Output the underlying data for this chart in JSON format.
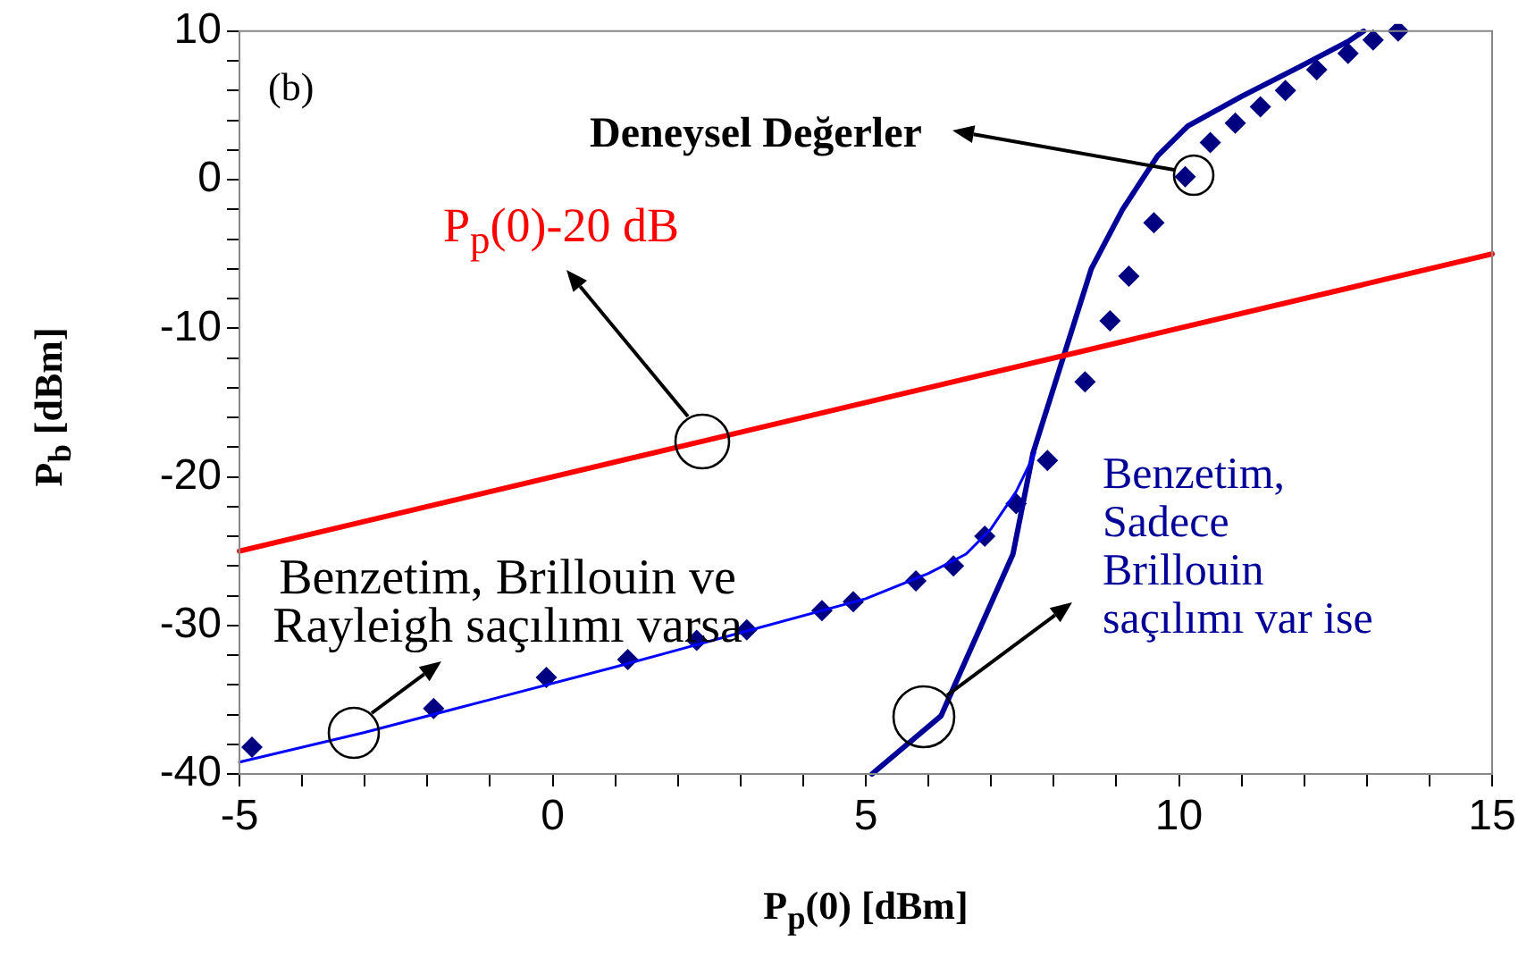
{
  "chart_data": {
    "type": "line",
    "xlabel": "P$_{p}$(0) [dBm]",
    "ylabel": "P$_{b}$ [dBm]",
    "annotations": [
      "(b)"
    ],
    "xlim": [
      -5,
      15
    ],
    "ylim": [
      -40,
      10
    ],
    "xticks": [
      -5,
      {
        "value": -4,
        "label": null
      },
      {
        "value": -3,
        "label": null
      },
      {
        "value": -2,
        "label": null
      },
      {
        "value": -1,
        "label": null
      },
      0,
      {
        "value": 1,
        "label": null
      },
      {
        "value": 2,
        "label": null
      },
      {
        "value": 3,
        "label": null
      },
      {
        "value": 4,
        "label": null
      },
      5,
      {
        "value": 6,
        "label": null
      },
      {
        "value": 7,
        "label": null
      },
      {
        "value": 8,
        "label": null
      },
      {
        "value": 9,
        "label": null
      },
      10,
      {
        "value": 11,
        "label": null
      },
      {
        "value": 12,
        "label": null
      },
      {
        "value": 13,
        "label": null
      },
      {
        "value": 14,
        "label": null
      },
      15
    ],
    "yticks": [
      -40,
      {
        "value": -38,
        "label": null
      },
      {
        "value": -36,
        "label": null
      },
      {
        "value": -34,
        "label": null
      },
      {
        "value": -32,
        "label": null
      },
      -30,
      {
        "value": -28,
        "label": null
      },
      {
        "value": -26,
        "label": null
      },
      {
        "value": -24,
        "label": null
      },
      {
        "value": -22,
        "label": null
      },
      -20,
      {
        "value": -18,
        "label": null
      },
      {
        "value": -16,
        "label": null
      },
      {
        "value": -14,
        "label": null
      },
      {
        "value": -12,
        "label": null
      },
      -10,
      {
        "value": -8,
        "label": null
      },
      {
        "value": -6,
        "label": null
      },
      {
        "value": -4,
        "label": null
      },
      {
        "value": -2,
        "label": null
      },
      0,
      {
        "value": 2,
        "label": null
      },
      {
        "value": 4,
        "label": null
      },
      {
        "value": 6,
        "label": null
      },
      {
        "value": 8,
        "label": null
      },
      10
    ],
    "grid": false,
    "legend": false,
    "series": [
      {
        "name": "P$_{p}$(0)-20 dB",
        "type": "line",
        "marker": "none",
        "color": "#ff0000",
        "x": [
          -5,
          15
        ],
        "values": [
          -25,
          -5
        ]
      },
      {
        "name": "Benzetim, Brillouin ve Rayleigh saçılımı varsa",
        "type": "line",
        "marker": "none",
        "color": "#0000ff",
        "x": [
          -5,
          -3,
          -1,
          1,
          3,
          5,
          6,
          6.6,
          7,
          7.4,
          7.7
        ],
        "values": [
          -39.2,
          -37.2,
          -35,
          -32.8,
          -30.5,
          -28.2,
          -26.5,
          -25.2,
          -23.5,
          -21,
          -18.4
        ]
      },
      {
        "name": "Benzetim, Sadece Brillouin saçılımı var ise",
        "type": "line",
        "marker": "none",
        "color": "#000099",
        "x": [
          5.1,
          6.2,
          7.35,
          7.67,
          8.18,
          8.6,
          9.1,
          9.66,
          10.14,
          11,
          11.93,
          12.7,
          12.95
        ],
        "values": [
          -40,
          -36.1,
          -25.2,
          -18.4,
          -11.6,
          -6,
          -2,
          1.6,
          3.6,
          5.6,
          7.6,
          9.3,
          10
        ]
      },
      {
        "name": "Deneysel Değerler",
        "type": "scatter",
        "marker": "diamond",
        "color": "#000080",
        "x": [
          -4.8,
          -1.9,
          -0.1,
          1.2,
          2.3,
          3.1,
          4.3,
          4.8,
          5.8,
          6.4,
          6.9,
          7.4,
          7.9,
          8.5,
          8.9,
          9.2,
          9.6,
          10.1,
          10.5,
          10.9,
          11.3,
          11.7,
          12.2,
          12.7,
          13.1,
          13.5
        ],
        "values": [
          -38.2,
          -35.6,
          -33.5,
          -32.3,
          -31,
          -30.3,
          -29,
          -28.4,
          -27,
          -26,
          -24,
          -21.8,
          -18.9,
          -13.6,
          -9.5,
          -6.5,
          -2.9,
          0.2,
          2.5,
          3.8,
          4.9,
          6,
          7.4,
          8.5,
          9.4,
          10
        ]
      }
    ]
  }
}
